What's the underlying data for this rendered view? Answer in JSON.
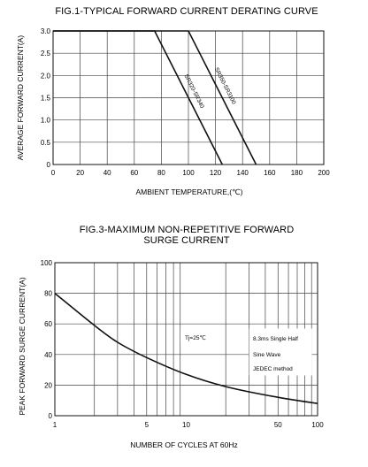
{
  "chart_data": [
    {
      "type": "line",
      "title": "FIG.1-TYPICAL FORWARD CURRENT DERATING CURVE",
      "xlabel": "AMBIENT TEMPERATURE,(℃)",
      "ylabel": "AVERAGE FORWARD CURRENT(A)",
      "xlim": [
        0,
        200
      ],
      "ylim": [
        0,
        3.0
      ],
      "xticks": [
        "0",
        "20",
        "40",
        "60",
        "80",
        "100",
        "120",
        "140",
        "160",
        "180",
        "200"
      ],
      "yticks": [
        "0",
        "0.5",
        "1.0",
        "1.5",
        "2.0",
        "2.5",
        "3.0"
      ],
      "grid": true,
      "series": [
        {
          "name": "SR320-SR340",
          "x": [
            0,
            75,
            125
          ],
          "y": [
            3.0,
            3.0,
            0
          ]
        },
        {
          "name": "SR350-SR3100",
          "x": [
            0,
            100,
            150
          ],
          "y": [
            3.0,
            3.0,
            0
          ]
        }
      ]
    },
    {
      "type": "line",
      "title": "FIG.3-MAXIMUM NON-REPETITIVE FORWARD",
      "subtitle": "SURGE CURRENT",
      "xlabel": "NUMBER OF CYCLES AT 60Hz",
      "ylabel": "PEAK FORWARD SURGE CURRENT(A)",
      "xscale": "log",
      "xlim": [
        1,
        100
      ],
      "ylim": [
        0,
        100
      ],
      "xticks": [
        "1",
        "5",
        "10",
        "50",
        "100"
      ],
      "yticks": [
        "0",
        "20",
        "40",
        "60",
        "80",
        "100"
      ],
      "grid": true,
      "annotations": [
        "Tj=25℃",
        "8.3ms Single Half",
        "Sine Wave",
        "JEDEC method"
      ],
      "series": [
        {
          "name": "",
          "x": [
            1,
            2,
            3,
            5,
            10,
            20,
            50,
            100
          ],
          "y": [
            80,
            59,
            48,
            38,
            27,
            19,
            12,
            8
          ]
        }
      ]
    }
  ]
}
